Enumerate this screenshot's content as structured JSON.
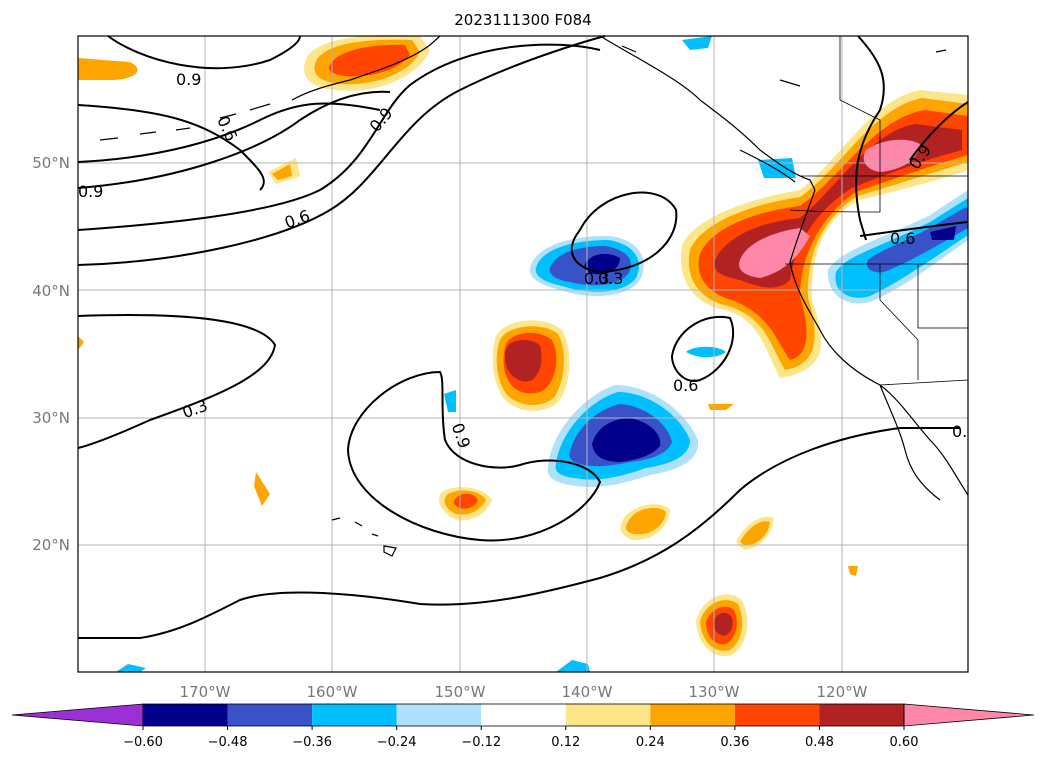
{
  "title": "2023111300 F084",
  "map": {
    "lat_labels": [
      "50°N",
      "40°N",
      "30°N",
      "20°N"
    ],
    "lon_labels": [
      "170°W",
      "160°W",
      "150°W",
      "140°W",
      "130°W",
      "120°W"
    ],
    "contour_labels": [
      "0.9",
      "0.9",
      "0.6",
      "0.9",
      "0.6",
      "0.9",
      "0.3",
      "0.3",
      "0.6",
      "0.9",
      "0.6",
      "0.3",
      "0."
    ]
  },
  "colorbar": {
    "ticks": [
      "−0.60",
      "−0.48",
      "−0.36",
      "−0.24",
      "−0.12",
      "0.12",
      "0.24",
      "0.36",
      "0.48",
      "0.60"
    ],
    "colors": [
      "#9b30d6",
      "#00008b",
      "#3a52c8",
      "#00bfff",
      "#aee2fa",
      "#ffffff",
      "#fde68a",
      "#ffa500",
      "#ff4500",
      "#b22222",
      "#ff88aa",
      "#ff88aa"
    ]
  }
}
